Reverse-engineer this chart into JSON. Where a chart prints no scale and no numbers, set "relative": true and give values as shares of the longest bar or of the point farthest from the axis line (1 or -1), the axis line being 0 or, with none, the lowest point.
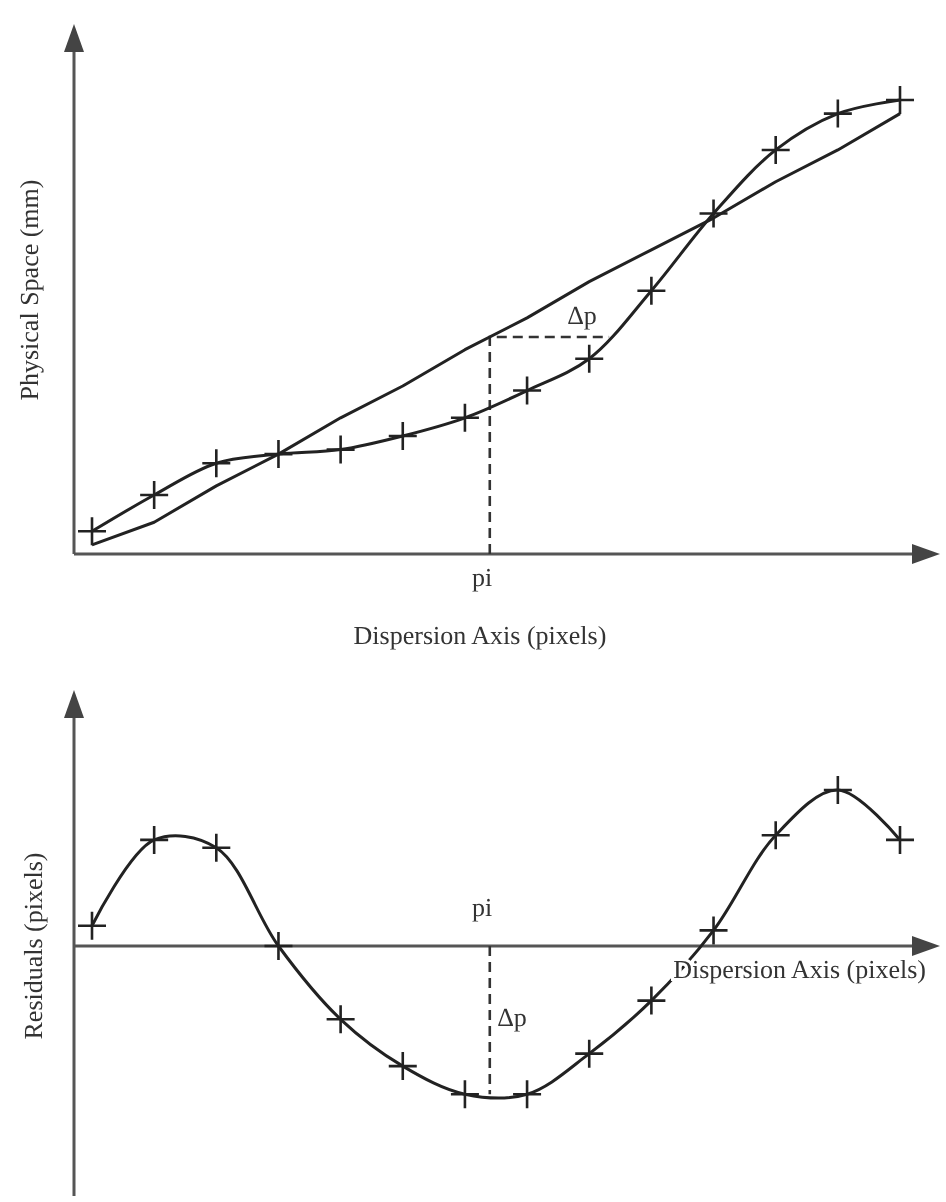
{
  "chart_data": [
    {
      "type": "line",
      "xlabel": "Dispersion Axis (pixels)",
      "ylabel": "Physical Space (mm)",
      "relative": true,
      "categories": [
        null,
        null,
        null,
        null,
        null,
        null,
        null,
        null,
        null,
        null,
        null,
        null,
        null,
        null
      ],
      "series": [
        {
          "color": "#222222",
          "marker": "none",
          "values": [
            0.02,
            0.07,
            0.15,
            0.22,
            0.3,
            0.37,
            0.45,
            0.52,
            0.6,
            0.67,
            0.74,
            0.82,
            0.89,
            0.97
          ]
        },
        {
          "color": "#222222",
          "marker": "cross",
          "values": [
            0.05,
            0.13,
            0.2,
            0.22,
            0.23,
            0.26,
            0.3,
            0.36,
            0.43,
            0.58,
            0.75,
            0.89,
            0.97,
            1.0
          ]
        }
      ],
      "annotations": [
        "pi",
        "Δp"
      ]
    },
    {
      "type": "line",
      "xlabel": "Dispersion Axis (pixels)",
      "ylabel": "Residuals (pixels)",
      "relative": true,
      "categories": [
        null,
        null,
        null,
        null,
        null,
        null,
        null,
        null,
        null,
        null,
        null,
        null,
        null,
        null
      ],
      "series": [
        {
          "color": "#222222",
          "marker": "cross",
          "values": [
            0.13,
            0.68,
            0.63,
            0,
            -0.47,
            -0.77,
            -0.95,
            -0.95,
            -0.69,
            -0.35,
            0.1,
            0.71,
            1,
            0.68
          ]
        }
      ],
      "annotations": [
        "pi",
        "Δp"
      ]
    }
  ]
}
